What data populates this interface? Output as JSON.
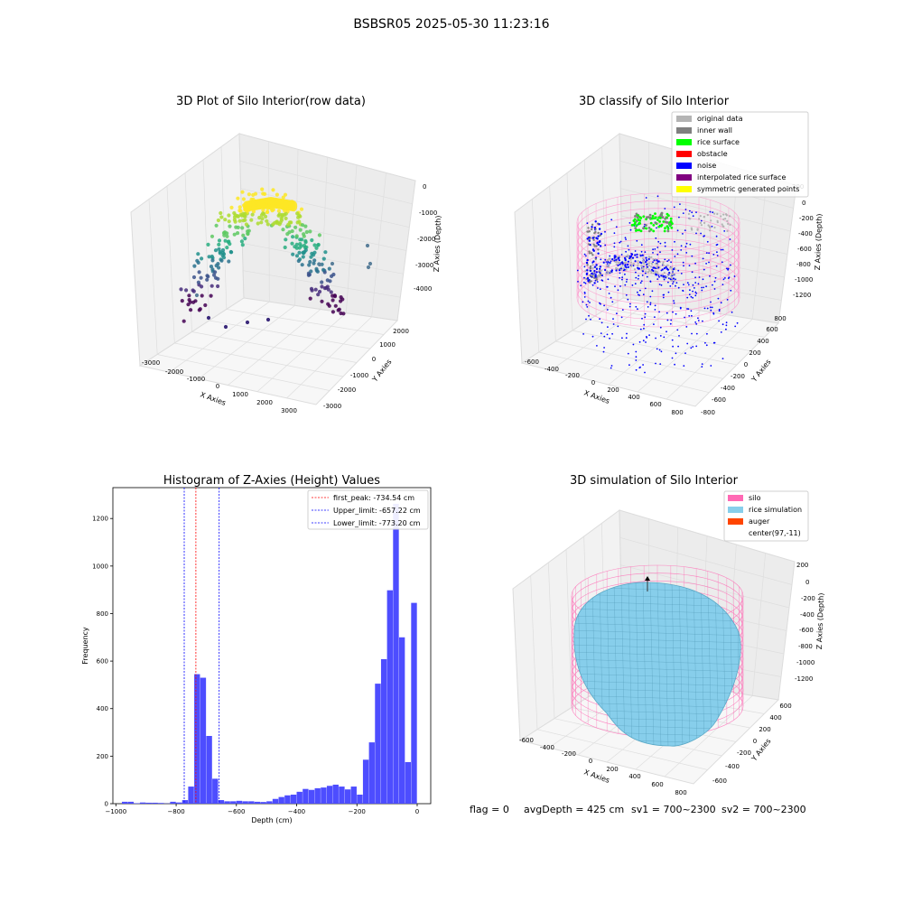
{
  "suptitle": "BSBSR05 2025-05-30 11:23:16",
  "status_line": {
    "flag": "flag = 0",
    "avg_depth": "avgDepth = 425 cm",
    "sv1": "sv1 = 700~2300",
    "sv2": "sv2 = 700~2300"
  },
  "chart_data": [
    {
      "type": "scatter",
      "projection": "3d",
      "title": "3D Plot of Silo Interior(row data)",
      "xlabel": "X Axies",
      "ylabel": "Y Axies",
      "zlabel": "Z Axies (Depth)",
      "x_ticks": [
        "-3000",
        "-2000",
        "-1000",
        "0",
        "1000",
        "2000",
        "3000"
      ],
      "y_ticks": [
        "-3000",
        "-2000",
        "-1000",
        "0",
        "1000",
        "2000"
      ],
      "z_ticks": [
        "0",
        "-1000",
        "-2000",
        "-3000",
        "-4000"
      ],
      "colormap": "viridis",
      "grid": true
    },
    {
      "type": "scatter",
      "projection": "3d",
      "title": "3D classify of Silo Interior",
      "xlabel": "X Axies",
      "ylabel": "Y Axies",
      "zlabel": "Z Axies (Depth)",
      "x_ticks": [
        "-600",
        "-400",
        "-200",
        "0",
        "200",
        "400",
        "600",
        "800"
      ],
      "y_ticks": [
        "-800",
        "-600",
        "-400",
        "-200",
        "0",
        "200",
        "400",
        "600",
        "800"
      ],
      "z_ticks": [
        "200",
        "0",
        "-200",
        "-400",
        "-600",
        "-800",
        "-1000",
        "-1200"
      ],
      "legend_position": "top-right",
      "legend": [
        {
          "label": "original data",
          "color": "#b4b4b4"
        },
        {
          "label": "inner wall",
          "color": "#808080"
        },
        {
          "label": "rice surface",
          "color": "#00ff00"
        },
        {
          "label": "obstacle",
          "color": "#ff0000"
        },
        {
          "label": "noise",
          "color": "#0000ff"
        },
        {
          "label": "interpolated rice surface",
          "color": "#800080"
        },
        {
          "label": "symmetric generated points",
          "color": "#ffff00"
        }
      ],
      "grid": true
    },
    {
      "type": "bar",
      "title": "Histogram of Z-Axies (Height) Values",
      "xlabel": "Depth (cm)",
      "ylabel": "Frequency",
      "xlim": [
        -1010,
        45
      ],
      "ylim": [
        0,
        1330
      ],
      "x_ticks": [
        -1000,
        -800,
        -600,
        -400,
        -200,
        0
      ],
      "y_ticks": [
        0,
        200,
        400,
        600,
        800,
        1000,
        1200
      ],
      "bar_color": "#4d4dff",
      "bin_width": 20,
      "bins": [
        {
          "x": -970,
          "value": 8
        },
        {
          "x": -950,
          "value": 8
        },
        {
          "x": -930,
          "value": 2
        },
        {
          "x": -910,
          "value": 5
        },
        {
          "x": -890,
          "value": 4
        },
        {
          "x": -870,
          "value": 4
        },
        {
          "x": -850,
          "value": 3
        },
        {
          "x": -830,
          "value": 1
        },
        {
          "x": -810,
          "value": 8
        },
        {
          "x": -790,
          "value": 5
        },
        {
          "x": -770,
          "value": 15
        },
        {
          "x": -750,
          "value": 72
        },
        {
          "x": -730,
          "value": 545
        },
        {
          "x": -710,
          "value": 530
        },
        {
          "x": -690,
          "value": 285
        },
        {
          "x": -670,
          "value": 105
        },
        {
          "x": -650,
          "value": 15
        },
        {
          "x": -630,
          "value": 10
        },
        {
          "x": -610,
          "value": 10
        },
        {
          "x": -590,
          "value": 12
        },
        {
          "x": -570,
          "value": 10
        },
        {
          "x": -550,
          "value": 10
        },
        {
          "x": -530,
          "value": 8
        },
        {
          "x": -510,
          "value": 7
        },
        {
          "x": -490,
          "value": 10
        },
        {
          "x": -470,
          "value": 20
        },
        {
          "x": -450,
          "value": 28
        },
        {
          "x": -430,
          "value": 35
        },
        {
          "x": -410,
          "value": 38
        },
        {
          "x": -390,
          "value": 50
        },
        {
          "x": -370,
          "value": 62
        },
        {
          "x": -350,
          "value": 58
        },
        {
          "x": -330,
          "value": 65
        },
        {
          "x": -310,
          "value": 68
        },
        {
          "x": -290,
          "value": 75
        },
        {
          "x": -270,
          "value": 80
        },
        {
          "x": -250,
          "value": 72
        },
        {
          "x": -230,
          "value": 60
        },
        {
          "x": -210,
          "value": 72
        },
        {
          "x": -190,
          "value": 38
        },
        {
          "x": -170,
          "value": 185
        },
        {
          "x": -150,
          "value": 258
        },
        {
          "x": -130,
          "value": 505
        },
        {
          "x": -110,
          "value": 608
        },
        {
          "x": -90,
          "value": 898
        },
        {
          "x": -70,
          "value": 1262
        },
        {
          "x": -50,
          "value": 700
        },
        {
          "x": -30,
          "value": 175
        },
        {
          "x": -10,
          "value": 845
        }
      ],
      "vlines": [
        {
          "label": "first_peak: -734.54 cm",
          "x": -734.54,
          "color": "#ff0000"
        },
        {
          "label": "Upper_limit: -657.22 cm",
          "x": -657.22,
          "color": "#0000ff"
        },
        {
          "label": "Lower_limit: -773.20 cm",
          "x": -773.2,
          "color": "#0000ff"
        }
      ],
      "legend_position": "top-right"
    },
    {
      "type": "area",
      "projection": "3d",
      "title": "3D simulation of Silo Interior",
      "xlabel": "X Axies",
      "ylabel": "Y Axies",
      "zlabel": "Z Axies (Depth)",
      "x_ticks": [
        "-600",
        "-400",
        "-200",
        "0",
        "200",
        "400",
        "600",
        "800"
      ],
      "y_ticks": [
        "-600",
        "-400",
        "-200",
        "0",
        "200",
        "400",
        "600"
      ],
      "z_ticks": [
        "200",
        "0",
        "-200",
        "-400",
        "-600",
        "-800",
        "-1000",
        "-1200"
      ],
      "legend_position": "top-right",
      "legend": [
        {
          "label": "silo",
          "color": "#ff69b4"
        },
        {
          "label": "rice simulation",
          "color": "#87ceeb"
        },
        {
          "label": "auger",
          "color": "#ff4500"
        },
        {
          "label": "center(97,-11)",
          "color": "#ffffff"
        }
      ],
      "grid": true
    }
  ]
}
